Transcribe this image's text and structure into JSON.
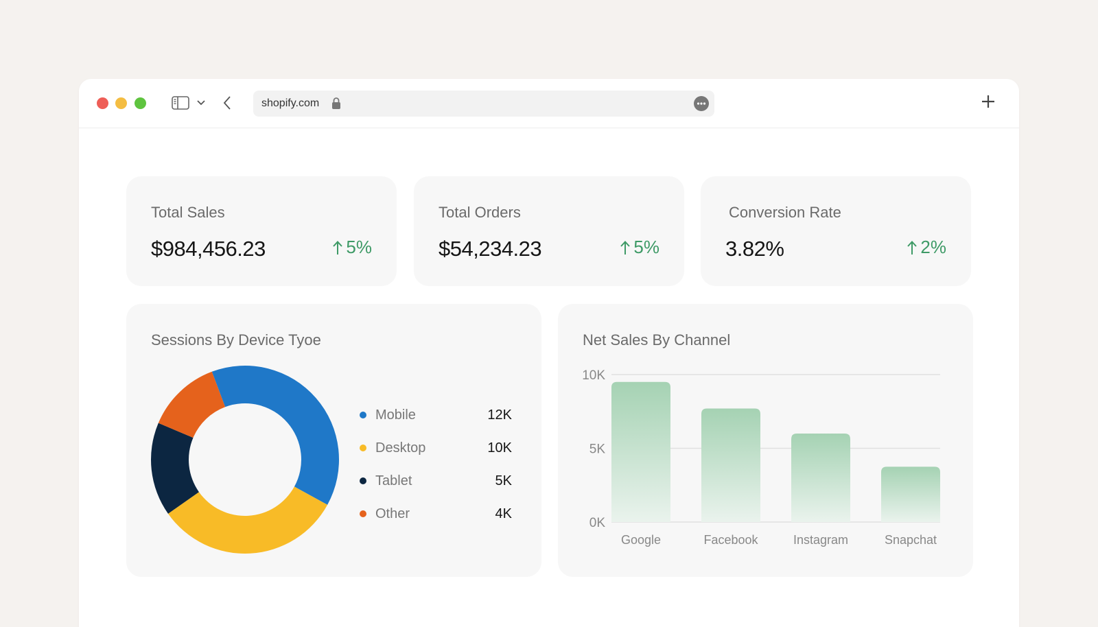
{
  "browser": {
    "url": "shopify.com",
    "traffic_colors": [
      "#ee5e57",
      "#f4bd42",
      "#5fc43f"
    ]
  },
  "kpis": [
    {
      "title": "Total Sales",
      "value": "$984,456.23",
      "delta": "5%"
    },
    {
      "title": "Total Orders",
      "value": "$54,234.23",
      "delta": "5%"
    },
    {
      "title": "Conversion Rate",
      "value": "3.82%",
      "delta": "2%"
    }
  ],
  "colors": {
    "positive": "#3e9a66",
    "bar": "#a5d2b3"
  },
  "chart_data": [
    {
      "type": "pie",
      "title": "Sessions By Device Tyoe",
      "categories": [
        "Mobile",
        "Desktop",
        "Tablet",
        "Other"
      ],
      "values": [
        12,
        10,
        5,
        4
      ],
      "value_labels": [
        "12K",
        "10K",
        "5K",
        "4K"
      ],
      "colors": [
        "#1f78c8",
        "#f8bb27",
        "#0c2641",
        "#e5621c"
      ],
      "donut": true,
      "legend": "right"
    },
    {
      "type": "bar",
      "title": "Net Sales By Channel",
      "categories": [
        "Google",
        "Facebook",
        "Instagram",
        "Snapchat"
      ],
      "values": [
        9500,
        7700,
        6000,
        3750
      ],
      "ylim": [
        0,
        10000
      ],
      "yticks": [
        {
          "value": 0,
          "label": "0K"
        },
        {
          "value": 5000,
          "label": "5K"
        },
        {
          "value": 10000,
          "label": "10K"
        }
      ],
      "grid": true
    }
  ]
}
